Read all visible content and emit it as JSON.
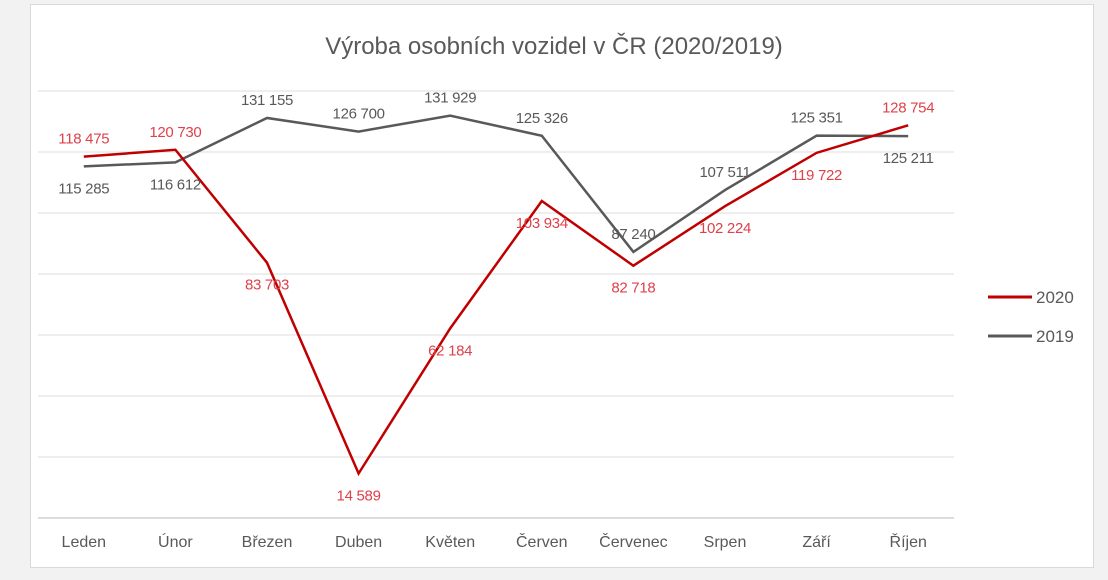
{
  "chart_data": {
    "type": "line",
    "title": "Výroba osobních vozidel v ČR (2020/2019)",
    "xlabel": "",
    "ylabel": "",
    "ylim": [
      0,
      140000
    ],
    "y_gridline_step": 20000,
    "grid": true,
    "y_tick_labels_visible": false,
    "legend_position": "right",
    "categories": [
      "Leden",
      "Únor",
      "Březen",
      "Duben",
      "Květen",
      "Červen",
      "Červenec",
      "Srpen",
      "Září",
      "Říjen"
    ],
    "series": [
      {
        "name": "2020",
        "color": "#c00000",
        "label_color": "#e0404a",
        "values": [
          118475,
          120730,
          83703,
          14589,
          62184,
          103934,
          82718,
          102224,
          119722,
          128754
        ],
        "labels": [
          "118 475",
          "120 730",
          "83 703",
          "14 589",
          "62 184",
          "103 934",
          "82 718",
          "102 224",
          "119 722",
          "128 754"
        ],
        "label_side": [
          "above",
          "above",
          "below",
          "below",
          "below",
          "below",
          "below",
          "below",
          "below",
          "above"
        ]
      },
      {
        "name": "2019",
        "color": "#595959",
        "label_color": "#595959",
        "values": [
          115285,
          116612,
          131155,
          126700,
          131929,
          125326,
          87240,
          107511,
          125351,
          125211
        ],
        "labels": [
          "115 285",
          "116 612",
          "131 155",
          "126 700",
          "131 929",
          "125 326",
          "87 240",
          "107 511",
          "125 351",
          "125 211"
        ],
        "label_side": [
          "below",
          "below",
          "above",
          "above",
          "above",
          "above",
          "above",
          "above",
          "above",
          "below"
        ]
      }
    ]
  }
}
